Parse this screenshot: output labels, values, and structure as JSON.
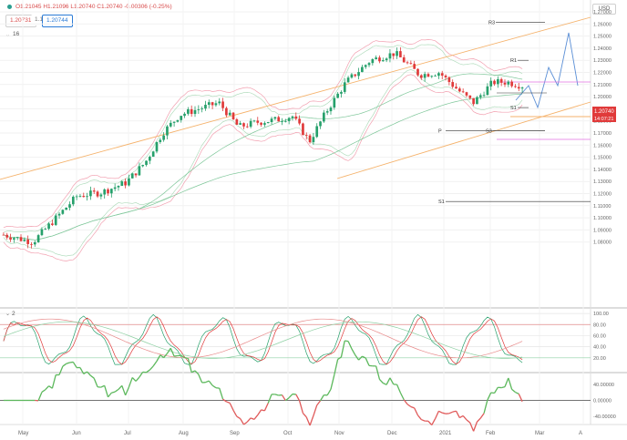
{
  "header": {
    "ohlc_text": "O1.21045 H1.21096 L1.20740 C1.20740 -0.00306 (-0.25%)",
    "bid": "1.20731",
    "spread": "1.1",
    "ask": "1.20744",
    "interval_label": "16",
    "currency": "USD"
  },
  "price_axis": {
    "labels": [
      "1.27000",
      "1.26000",
      "1.25000",
      "1.24000",
      "1.23000",
      "1.22000",
      "1.21000",
      "1.20000",
      "1.19000",
      "1.18000",
      "1.17000",
      "1.16000",
      "1.15000",
      "1.14000",
      "1.13000",
      "1.12000",
      "1.11000",
      "1.10000",
      "1.09000",
      "1.08000"
    ],
    "current_price": "1.20740",
    "countdown": "14:07:21"
  },
  "pivot_levels": [
    {
      "label": "R3",
      "price": 1.2615
    },
    {
      "label": "R1",
      "price": 1.23
    },
    {
      "label": "P",
      "price": 1.172
    },
    {
      "label": "S1",
      "price": 1.1135
    },
    {
      "label": "S1",
      "price": 1.191
    },
    {
      "label": "S3",
      "price": 1.172
    }
  ],
  "stoch_panel": {
    "label": "2",
    "axis_labels": [
      "100.00",
      "80.00",
      "60.00",
      "40.00",
      "20.00"
    ]
  },
  "momentum_panel": {
    "axis_labels": [
      "40.00000",
      "0.00000",
      "-40.00000"
    ]
  },
  "time_axis": {
    "labels": [
      "May",
      "Jun",
      "Jul",
      "Aug",
      "Sep",
      "Oct",
      "Nov",
      "Dec",
      "2021",
      "Feb",
      "Mar",
      "A"
    ]
  },
  "colors": {
    "bull": "#26a06b",
    "bear": "#e03a3a",
    "channel": "#f5b26b",
    "bollinger": "#f2a0b0",
    "ma_green": "#7fc79a",
    "projection": "#5b8fd6",
    "magenta_line": "#e070e0"
  }
}
